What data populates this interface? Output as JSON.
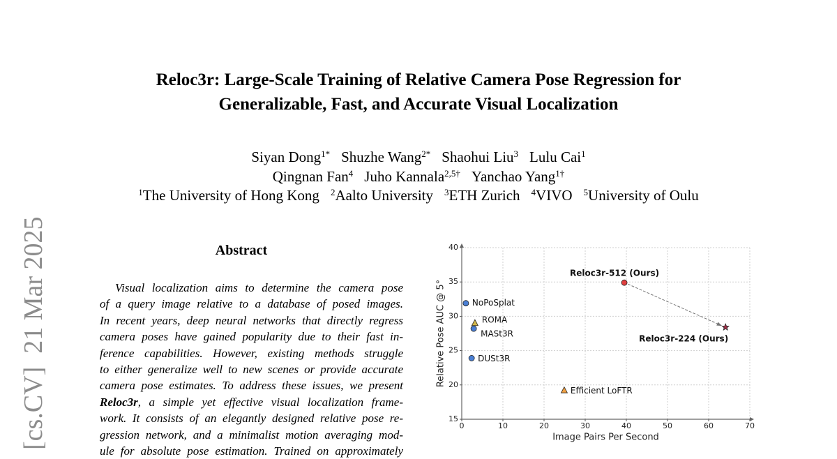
{
  "sidebar": "[cs.CV]  21 Mar 2025",
  "title": [
    "Reloc3r: Large-Scale Training of Relative Camera Pose Regression for",
    "Generalizable, Fast, and Accurate Visual Localization"
  ],
  "authors": [
    [
      {
        "name": "Siyan Dong",
        "sup": "1*"
      },
      {
        "name": "Shuzhe Wang",
        "sup": "2*"
      },
      {
        "name": "Shaohui Liu",
        "sup": "3"
      },
      {
        "name": "Lulu Cai",
        "sup": "1"
      }
    ],
    [
      {
        "name": "Qingnan Fan",
        "sup": "4"
      },
      {
        "name": "Juho Kannala",
        "sup": "2,5†"
      },
      {
        "name": "Yanchao Yang",
        "sup": "1†"
      }
    ]
  ],
  "affiliations": [
    {
      "sup": "1",
      "name": "The University of Hong Kong"
    },
    {
      "sup": "2",
      "name": "Aalto University"
    },
    {
      "sup": "3",
      "name": "ETH Zurich"
    },
    {
      "sup": "4",
      "name": "VIVO"
    },
    {
      "sup": "5",
      "name": "University of Oulu"
    }
  ],
  "abstract": {
    "heading": "Abstract",
    "lines": [
      "Visual localization aims to determine the camera pose",
      "of a query image relative to a database of posed images.",
      "In recent years, deep neural networks that directly regress",
      "camera poses have gained popularity due to their fast in-",
      "ference capabilities.  However, existing methods struggle",
      "to either generalize well to new scenes or provide accurate",
      "camera pose estimates. To address these issues, we present",
      {
        "bold": "Reloc3r",
        "text": ", a simple yet effective visual localization frame-"
      },
      "work. It consists of an elegantly designed relative pose re-",
      "gression network, and a minimalist motion averaging mod-",
      "ule for absolute pose estimation. Trained on approximately"
    ]
  },
  "chart_data": {
    "type": "scatter",
    "x_label": "Image Pairs Per Second",
    "y_label": "Relative Pose AUC @ 5°",
    "xlim": [
      0,
      70
    ],
    "xticks": [
      0,
      10,
      20,
      30,
      40,
      50,
      60,
      70
    ],
    "ylim": [
      15,
      40
    ],
    "yticks": [
      15,
      20,
      25,
      30,
      35,
      40
    ],
    "grid": true,
    "series": [
      {
        "name": "NoPoSplat",
        "color": "#4a7fd4",
        "marker": "circle",
        "x": [
          1.0
        ],
        "values": [
          31.9
        ]
      },
      {
        "name": "ROMA",
        "color": "#d4b84a",
        "marker": "triangle",
        "x": [
          3.2
        ],
        "values": [
          29.0
        ]
      },
      {
        "name": "MASt3R",
        "color": "#4a7fd4",
        "marker": "circle",
        "x": [
          2.9
        ],
        "values": [
          28.2
        ]
      },
      {
        "name": "DUSt3R",
        "color": "#4a7fd4",
        "marker": "circle",
        "x": [
          2.4
        ],
        "values": [
          23.9
        ]
      },
      {
        "name": "Efficient LoFTR",
        "color": "#f0a040",
        "marker": "triangle",
        "x": [
          24.9
        ],
        "values": [
          19.2
        ]
      },
      {
        "name": "Reloc3r-512 (Ours)",
        "color": "#e04040",
        "marker": "circle",
        "x": [
          39.5
        ],
        "values": [
          34.9
        ]
      },
      {
        "name": "Reloc3r-224 (Ours)",
        "color": "#a03048",
        "marker": "star",
        "x": [
          64.1
        ],
        "values": [
          28.4
        ]
      }
    ]
  }
}
